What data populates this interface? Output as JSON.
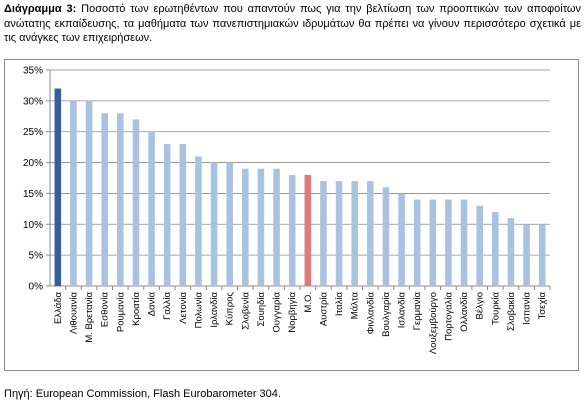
{
  "caption": {
    "lead": "Διάγραμμα 3:",
    "text": " Ποσοστό των ερωτηθέντων που απαντούν πως για την βελτίωση των προοπτικών των αποφοίτων ανώτατης εκπαίδευσης, τα μαθήματα των πανεπιστημιακών ιδρυμάτων θα πρέπει να γίνουν περισσότερο σχετικά με τις ανάγκες των επιχειρήσεων."
  },
  "source": "Πηγή: European Commission, Flash Eurobarometer 304.",
  "colors": {
    "default_bar": "#a9c2e2",
    "highlight_greece": "#36609c",
    "highlight_average": "#e07b7b",
    "grid": "#8c8c8c",
    "axis": "#8c8c8c"
  },
  "chart_data": {
    "type": "bar",
    "ylim": [
      0,
      35
    ],
    "ytick_format": "percent",
    "yticks": [
      "0%",
      "5%",
      "10%",
      "15%",
      "20%",
      "25%",
      "30%",
      "35%"
    ],
    "grid": true,
    "categories": [
      "Ελλάδα",
      "Λιθουανία",
      "Μ. Βρετανία",
      "Εσθονία",
      "Ρουμανία",
      "Κροατία",
      "Δανία",
      "Γαλλία",
      "Λετονία",
      "Πολωνία",
      "Ιρλανδία",
      "Κύπρος",
      "Σλοβενία",
      "Σουηδία",
      "Ουγγαρία",
      "Νορβηγία",
      "Μ.Ο.",
      "Αυστρία",
      "Ιταλία",
      "Μάλτα",
      "Φινλανδία",
      "Βουλγαρία",
      "Ισλανδία",
      "Γερμανία",
      "Λουξεμβούργο",
      "Πορτογαλία",
      "Ολλανδία",
      "Βέλγιο",
      "Τουρκία",
      "Σλοβακία",
      "Ισπανία",
      "Τσεχία"
    ],
    "values": [
      32,
      30,
      30,
      28,
      28,
      27,
      25,
      23,
      23,
      21,
      20,
      20,
      19,
      19,
      19,
      18,
      18,
      17,
      17,
      17,
      17,
      16,
      15,
      14,
      14,
      14,
      14,
      13,
      12,
      11,
      10,
      10
    ],
    "highlights": {
      "Ελλάδα": "highlight_greece",
      "Μ.Ο.": "highlight_average"
    }
  }
}
